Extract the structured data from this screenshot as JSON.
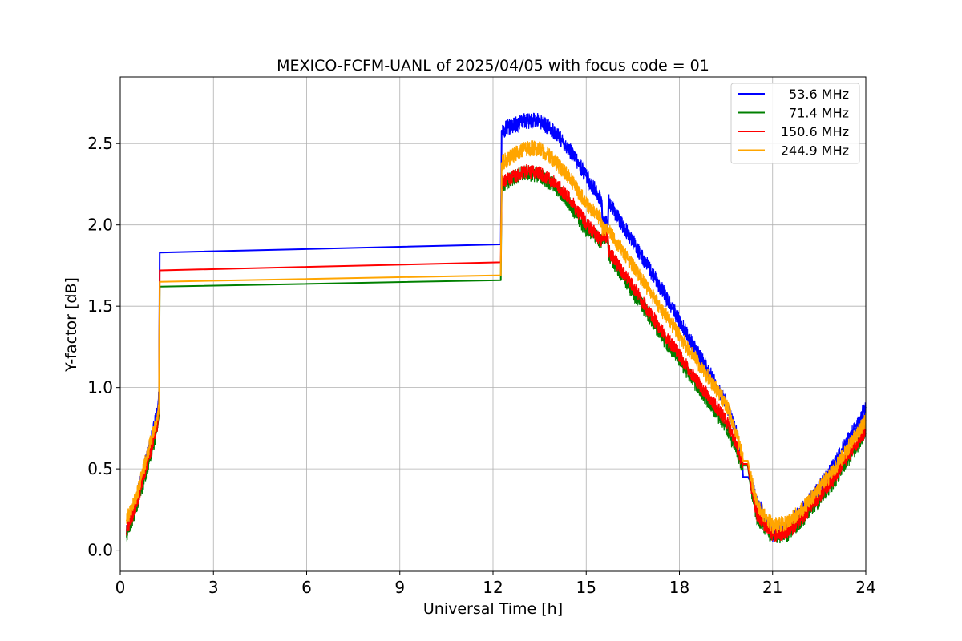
{
  "chart_data": {
    "type": "line",
    "title": "MEXICO-FCFM-UANL of 2025/04/05 with focus code = 01",
    "xlabel": "Universal Time [h]",
    "ylabel": "Y-factor [dB]",
    "xlim": [
      0,
      24
    ],
    "ylim": [
      -0.13,
      2.91
    ],
    "xticks": [
      0,
      3,
      6,
      9,
      12,
      15,
      18,
      21,
      24
    ],
    "xtick_labels": [
      "0",
      "3",
      "6",
      "9",
      "12",
      "15",
      "18",
      "21",
      "24"
    ],
    "yticks": [
      0.0,
      0.5,
      1.0,
      1.5,
      2.0,
      2.5
    ],
    "ytick_labels": [
      "0.0",
      "0.5",
      "1.0",
      "1.5",
      "2.0",
      "2.5"
    ],
    "grid": true,
    "legend_position": "top-right",
    "series": [
      {
        "name": "53.6 MHz",
        "color": "#0000ff",
        "noise": 0.05,
        "points": [
          [
            0.2,
            0.12
          ],
          [
            0.5,
            0.3
          ],
          [
            1.0,
            0.68
          ],
          [
            1.2,
            0.86
          ],
          [
            1.25,
            0.95
          ],
          [
            1.27,
            1.83
          ],
          [
            12.25,
            1.88
          ],
          [
            12.28,
            2.58
          ],
          [
            13.0,
            2.64
          ],
          [
            13.5,
            2.64
          ],
          [
            14.0,
            2.57
          ],
          [
            14.5,
            2.45
          ],
          [
            15.0,
            2.3
          ],
          [
            15.5,
            2.15
          ],
          [
            15.52,
            2.03
          ],
          [
            15.7,
            2.0
          ],
          [
            15.72,
            2.15
          ],
          [
            16.0,
            2.05
          ],
          [
            16.5,
            1.9
          ],
          [
            17.0,
            1.74
          ],
          [
            17.5,
            1.58
          ],
          [
            18.0,
            1.41
          ],
          [
            18.5,
            1.24
          ],
          [
            19.0,
            1.08
          ],
          [
            19.5,
            0.9
          ],
          [
            19.8,
            0.75
          ],
          [
            20.0,
            0.6
          ],
          [
            20.05,
            0.45
          ],
          [
            20.2,
            0.45
          ],
          [
            20.3,
            0.42
          ],
          [
            20.5,
            0.3
          ],
          [
            21.0,
            0.1
          ],
          [
            21.5,
            0.15
          ],
          [
            22.0,
            0.26
          ],
          [
            22.5,
            0.38
          ],
          [
            23.0,
            0.53
          ],
          [
            23.5,
            0.7
          ],
          [
            24.0,
            0.88
          ]
        ]
      },
      {
        "name": "71.4 MHz",
        "color": "#008000",
        "noise": 0.05,
        "points": [
          [
            0.2,
            0.1
          ],
          [
            0.5,
            0.25
          ],
          [
            1.0,
            0.6
          ],
          [
            1.2,
            0.76
          ],
          [
            1.25,
            0.85
          ],
          [
            1.27,
            1.62
          ],
          [
            12.25,
            1.66
          ],
          [
            12.28,
            2.25
          ],
          [
            13.0,
            2.32
          ],
          [
            13.5,
            2.31
          ],
          [
            14.0,
            2.24
          ],
          [
            14.5,
            2.12
          ],
          [
            15.0,
            1.97
          ],
          [
            15.5,
            1.9
          ],
          [
            15.52,
            1.93
          ],
          [
            15.7,
            1.93
          ],
          [
            15.72,
            1.82
          ],
          [
            16.0,
            1.74
          ],
          [
            16.5,
            1.59
          ],
          [
            17.0,
            1.45
          ],
          [
            17.5,
            1.3
          ],
          [
            18.0,
            1.17
          ],
          [
            18.5,
            1.03
          ],
          [
            19.0,
            0.9
          ],
          [
            19.5,
            0.76
          ],
          [
            19.8,
            0.63
          ],
          [
            20.0,
            0.53
          ],
          [
            20.05,
            0.52
          ],
          [
            20.2,
            0.52
          ],
          [
            20.3,
            0.38
          ],
          [
            20.5,
            0.2
          ],
          [
            21.0,
            0.08
          ],
          [
            21.5,
            0.1
          ],
          [
            22.0,
            0.2
          ],
          [
            22.5,
            0.31
          ],
          [
            23.0,
            0.43
          ],
          [
            23.5,
            0.58
          ],
          [
            24.0,
            0.72
          ]
        ]
      },
      {
        "name": "150.6 MHz",
        "color": "#ff0000",
        "noise": 0.045,
        "points": [
          [
            0.2,
            0.12
          ],
          [
            0.5,
            0.27
          ],
          [
            1.0,
            0.63
          ],
          [
            1.2,
            0.78
          ],
          [
            1.25,
            0.88
          ],
          [
            1.27,
            1.72
          ],
          [
            12.25,
            1.77
          ],
          [
            12.28,
            2.26
          ],
          [
            13.0,
            2.33
          ],
          [
            13.5,
            2.32
          ],
          [
            14.0,
            2.26
          ],
          [
            14.5,
            2.15
          ],
          [
            15.0,
            2.01
          ],
          [
            15.5,
            1.9
          ],
          [
            15.52,
            1.93
          ],
          [
            15.7,
            1.93
          ],
          [
            15.72,
            1.84
          ],
          [
            16.0,
            1.76
          ],
          [
            16.5,
            1.62
          ],
          [
            17.0,
            1.47
          ],
          [
            17.5,
            1.33
          ],
          [
            18.0,
            1.2
          ],
          [
            18.5,
            1.06
          ],
          [
            19.0,
            0.93
          ],
          [
            19.5,
            0.8
          ],
          [
            19.8,
            0.67
          ],
          [
            20.0,
            0.54
          ],
          [
            20.05,
            0.53
          ],
          [
            20.2,
            0.53
          ],
          [
            20.3,
            0.4
          ],
          [
            20.5,
            0.22
          ],
          [
            21.0,
            0.09
          ],
          [
            21.5,
            0.11
          ],
          [
            22.0,
            0.21
          ],
          [
            22.5,
            0.33
          ],
          [
            23.0,
            0.45
          ],
          [
            23.5,
            0.6
          ],
          [
            24.0,
            0.74
          ]
        ]
      },
      {
        "name": "244.9 MHz",
        "color": "#ffa500",
        "noise": 0.05,
        "points": [
          [
            0.2,
            0.18
          ],
          [
            0.5,
            0.32
          ],
          [
            1.0,
            0.68
          ],
          [
            1.2,
            0.82
          ],
          [
            1.25,
            0.9
          ],
          [
            1.27,
            1.65
          ],
          [
            12.25,
            1.69
          ],
          [
            12.28,
            2.38
          ],
          [
            13.0,
            2.47
          ],
          [
            13.5,
            2.47
          ],
          [
            14.0,
            2.39
          ],
          [
            14.5,
            2.28
          ],
          [
            15.0,
            2.13
          ],
          [
            15.5,
            2.03
          ],
          [
            15.52,
            1.98
          ],
          [
            15.7,
            1.98
          ],
          [
            15.72,
            1.98
          ],
          [
            16.0,
            1.88
          ],
          [
            16.5,
            1.75
          ],
          [
            17.0,
            1.6
          ],
          [
            17.5,
            1.46
          ],
          [
            18.0,
            1.32
          ],
          [
            18.5,
            1.18
          ],
          [
            19.0,
            1.04
          ],
          [
            19.5,
            0.9
          ],
          [
            19.8,
            0.74
          ],
          [
            20.0,
            0.6
          ],
          [
            20.05,
            0.55
          ],
          [
            20.2,
            0.55
          ],
          [
            20.3,
            0.45
          ],
          [
            20.5,
            0.28
          ],
          [
            21.0,
            0.15
          ],
          [
            21.5,
            0.17
          ],
          [
            22.0,
            0.26
          ],
          [
            22.5,
            0.38
          ],
          [
            23.0,
            0.5
          ],
          [
            23.5,
            0.65
          ],
          [
            24.0,
            0.8
          ]
        ]
      }
    ]
  }
}
